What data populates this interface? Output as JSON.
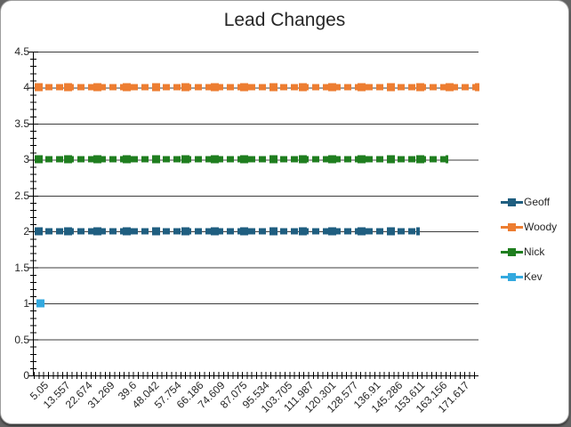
{
  "chart_data": {
    "type": "line",
    "title": "Lead Changes",
    "xlabel": "",
    "ylabel": "",
    "ylim": [
      0,
      4.5
    ],
    "y_tick_step": 0.5,
    "grid": true,
    "legend_position": "right",
    "x_tick_labels": [
      "5.05",
      "13.557",
      "22.674",
      "31.269",
      "39.6",
      "48.042",
      "57.754",
      "66.186",
      "74.609",
      "87.075",
      "95.534",
      "103.705",
      "111.987",
      "120.301",
      "128.577",
      "136.91",
      "145.286",
      "153.611",
      "163.156",
      "171.617"
    ],
    "y_tick_labels": [
      "4.5",
      "4",
      "3.5",
      "3",
      "2.5",
      "2",
      "1.5",
      "1",
      "0.5",
      "0"
    ],
    "series": [
      {
        "name": "Geoff",
        "constant_value": 2,
        "color": "#1F5E80",
        "extent_fraction": 0.865,
        "single_point": false
      },
      {
        "name": "Woody",
        "constant_value": 4,
        "color": "#ED7D31",
        "extent_fraction": 1.0,
        "single_point": false
      },
      {
        "name": "Nick",
        "constant_value": 3,
        "color": "#1F7E1F",
        "extent_fraction": 0.93,
        "single_point": false
      },
      {
        "name": "Kev",
        "constant_value": 1,
        "color": "#33A9DF",
        "extent_fraction": 0.0,
        "single_point": true
      }
    ]
  }
}
